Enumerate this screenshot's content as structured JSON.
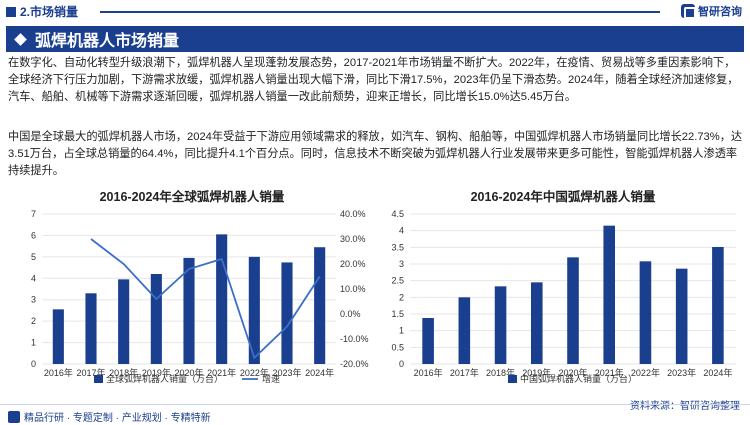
{
  "header": {
    "section": "2.市场销量",
    "brand": "智研咨询"
  },
  "title": "弧焊机器人市场销量",
  "paragraphs": [
    "在数字化、自动化转型升级浪潮下，弧焊机器人呈现蓬勃发展态势，2017-2021年市场销量不断扩大。2022年，在疫情、贸易战等多重因素影响下，全球经济下行压力加剧，下游需求放缓，弧焊机器人销量出现大幅下滑，同比下滑17.5%，2023年仍呈下滑态势。2024年，随着全球经济加速修复，汽车、船舶、机械等下游需求逐渐回暖，弧焊机器人销量一改此前颓势，迎来正增长，同比增长15.0%达5.45万台。",
    "中国是全球最大的弧焊机器人市场，2024年受益于下游应用领域需求的释放，如汽车、钢构、船舶等，中国弧焊机器人市场销量同比增长22.73%，达3.51万台，占全球总销量的64.4%，同比提升4.1个百分点。同时，信息技术不断突破为弧焊机器人行业发展带来更多可能性，智能弧焊机器人渗透率持续提升。"
  ],
  "chart_data": [
    {
      "type": "bar",
      "title": "2016-2024年全球弧焊机器人销量",
      "categories": [
        "2016年",
        "2017年",
        "2018年",
        "2019年",
        "2020年",
        "2021年",
        "2022年",
        "2023年",
        "2024年"
      ],
      "series": [
        {
          "name": "全球弧焊机器人销量（万台）",
          "type": "bar",
          "axis": "left",
          "values": [
            2.55,
            3.3,
            3.95,
            4.2,
            4.95,
            6.05,
            5.0,
            4.74,
            5.45
          ]
        },
        {
          "name": "增速",
          "type": "line",
          "axis": "right",
          "values": [
            null,
            30.0,
            20.0,
            6.0,
            18.0,
            22.0,
            -17.5,
            -5.0,
            15.0
          ]
        }
      ],
      "ylim": [
        0,
        7
      ],
      "yticks": [
        "0",
        "1",
        "2",
        "3",
        "4",
        "5",
        "6",
        "7"
      ],
      "y2lim": [
        -20,
        40
      ],
      "y2ticks": [
        "-20.0%",
        "-10.0%",
        "0.0%",
        "10.0%",
        "20.0%",
        "30.0%",
        "40.0%"
      ],
      "legend": "bottom",
      "colors": {
        "bar": "#1b3f8f",
        "line": "#3b6fc7"
      }
    },
    {
      "type": "bar",
      "title": "2016-2024年中国弧焊机器人销量",
      "categories": [
        "2016年",
        "2017年",
        "2018年",
        "2019年",
        "2020年",
        "2021年",
        "2022年",
        "2023年",
        "2024年"
      ],
      "series": [
        {
          "name": "中国弧焊机器人销量（万台）",
          "values": [
            1.38,
            2.0,
            2.33,
            2.45,
            3.2,
            4.15,
            3.08,
            2.86,
            3.51
          ]
        }
      ],
      "ylim": [
        0,
        4.5
      ],
      "yticks": [
        "0",
        "0.5",
        "1",
        "1.5",
        "2",
        "2.5",
        "3",
        "3.5",
        "4",
        "4.5"
      ],
      "legend": "bottom",
      "colors": {
        "bar": "#1b3f8f"
      }
    }
  ],
  "footer": {
    "tagline": "精品行研 · 专题定制 · 产业规划 · 专精特新",
    "source": "资料来源：智研咨询整理"
  }
}
